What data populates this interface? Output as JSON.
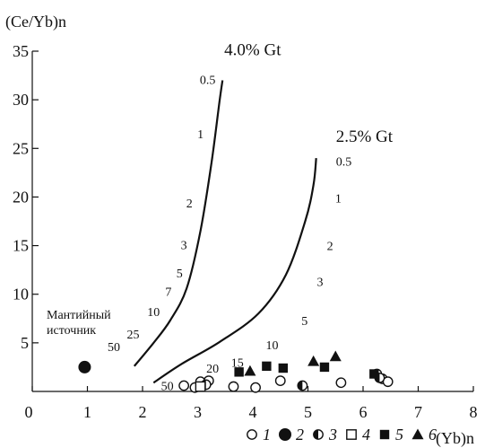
{
  "chart_data": {
    "type": "scatter",
    "title": "",
    "xlabel": "(Yb)n",
    "ylabel": "(Ce/Yb)n",
    "xlim": [
      0,
      8
    ],
    "ylim": [
      0,
      35
    ],
    "x_ticks": [
      0,
      1,
      2,
      3,
      4,
      5,
      6,
      7,
      8
    ],
    "y_ticks": [
      5,
      10,
      15,
      20,
      25,
      30,
      35
    ],
    "grid": false,
    "legend_position": "bottom",
    "source_label": "Мантийный источник",
    "source_point": {
      "x": 0.95,
      "y": 2.5
    },
    "melting_curves": [
      {
        "name": "4.0% Gt",
        "points": [
          [
            1.85,
            2.6
          ],
          [
            2.2,
            5.0
          ],
          [
            2.5,
            7.3
          ],
          [
            2.8,
            10.6
          ],
          [
            3.05,
            16.5
          ],
          [
            3.25,
            23.5
          ],
          [
            3.4,
            30.0
          ],
          [
            3.45,
            32.0
          ]
        ],
        "labels": [
          {
            "text": "0.5",
            "x": 3.18,
            "y": 32.1
          },
          {
            "text": "1",
            "x": 3.05,
            "y": 26.5
          },
          {
            "text": "2",
            "x": 2.85,
            "y": 19.4
          },
          {
            "text": "3",
            "x": 2.75,
            "y": 15.1
          },
          {
            "text": "5",
            "x": 2.67,
            "y": 12.2
          },
          {
            "text": "7",
            "x": 2.47,
            "y": 10.3
          },
          {
            "text": "10",
            "x": 2.2,
            "y": 8.2
          },
          {
            "text": "25",
            "x": 1.83,
            "y": 5.9
          },
          {
            "text": "50",
            "x": 1.48,
            "y": 4.6
          }
        ]
      },
      {
        "name": "2.5% Gt",
        "points": [
          [
            2.2,
            0.9
          ],
          [
            2.7,
            2.8
          ],
          [
            3.4,
            5.1
          ],
          [
            4.1,
            8.0
          ],
          [
            4.6,
            12.0
          ],
          [
            4.95,
            17.5
          ],
          [
            5.1,
            21.2
          ],
          [
            5.15,
            24.0
          ]
        ],
        "labels": [
          {
            "text": "0.5",
            "x": 5.65,
            "y": 23.7
          },
          {
            "text": "1",
            "x": 5.55,
            "y": 19.9
          },
          {
            "text": "2",
            "x": 5.4,
            "y": 15.0
          },
          {
            "text": "3",
            "x": 5.22,
            "y": 11.3
          },
          {
            "text": "5",
            "x": 4.94,
            "y": 7.3
          },
          {
            "text": "10",
            "x": 4.35,
            "y": 4.8
          },
          {
            "text": "15",
            "x": 3.72,
            "y": 3.0
          },
          {
            "text": "20",
            "x": 3.27,
            "y": 2.4
          },
          {
            "text": "50",
            "x": 2.45,
            "y": 0.6
          }
        ]
      }
    ],
    "series": [
      {
        "name": "1",
        "marker": "open-circle",
        "points": [
          [
            2.75,
            0.6
          ],
          [
            2.95,
            0.4
          ],
          [
            3.05,
            1.0
          ],
          [
            3.2,
            1.1
          ],
          [
            3.65,
            0.5
          ],
          [
            4.05,
            0.4
          ],
          [
            4.5,
            1.1
          ],
          [
            5.6,
            0.9
          ],
          [
            6.35,
            1.3
          ],
          [
            6.45,
            1.0
          ],
          [
            6.25,
            1.8
          ]
        ]
      },
      {
        "name": "2",
        "marker": "filled-circle",
        "points": [
          [
            0.95,
            2.5
          ]
        ]
      },
      {
        "name": "3",
        "marker": "half-circle",
        "points": [
          [
            3.15,
            0.7
          ],
          [
            4.9,
            0.6
          ],
          [
            6.3,
            1.4
          ]
        ]
      },
      {
        "name": "4",
        "marker": "open-square",
        "points": [
          [
            3.05,
            0.5
          ]
        ]
      },
      {
        "name": "5",
        "marker": "filled-square",
        "points": [
          [
            3.75,
            2.0
          ],
          [
            4.25,
            2.6
          ],
          [
            4.55,
            2.4
          ],
          [
            5.3,
            2.5
          ],
          [
            6.2,
            1.8
          ]
        ]
      },
      {
        "name": "6",
        "marker": "filled-triangle",
        "points": [
          [
            3.95,
            2.1
          ],
          [
            5.1,
            3.1
          ],
          [
            5.5,
            3.6
          ]
        ]
      }
    ]
  }
}
